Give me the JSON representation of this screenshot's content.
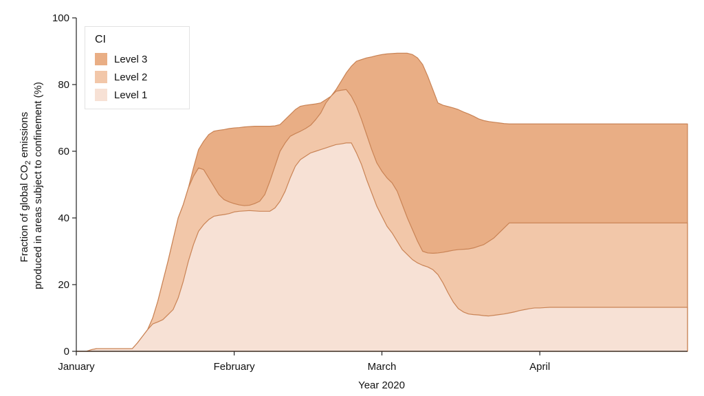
{
  "chart_data": {
    "type": "area",
    "xlabel": "Year 2020",
    "ylabel_line1_pre": "Fraction of global CO",
    "ylabel_sub": "2",
    "ylabel_line1_post": " emissions",
    "ylabel_line2": "produced in areas subject to confinement (%)",
    "ylim": [
      0,
      100
    ],
    "yticks": [
      0,
      20,
      40,
      60,
      80,
      100
    ],
    "xlim": [
      1,
      121
    ],
    "xticks": [
      {
        "day": 1,
        "label": "January"
      },
      {
        "day": 32,
        "label": "February"
      },
      {
        "day": 61,
        "label": "March"
      },
      {
        "day": 92,
        "label": "April"
      }
    ],
    "stacked": true,
    "legend": {
      "title": "CI",
      "position": "top-left"
    },
    "x": [
      1,
      3,
      4,
      5,
      6,
      7,
      8,
      9,
      10,
      11,
      12,
      13,
      14,
      15,
      16,
      17,
      18,
      19,
      20,
      21,
      22,
      23,
      24,
      25,
      26,
      27,
      28,
      29,
      30,
      31,
      32,
      33,
      34,
      35,
      36,
      37,
      38,
      39,
      40,
      41,
      42,
      43,
      44,
      45,
      46,
      47,
      48,
      49,
      50,
      51,
      52,
      53,
      54,
      55,
      56,
      57,
      58,
      59,
      60,
      61,
      62,
      63,
      64,
      65,
      66,
      67,
      68,
      69,
      70,
      71,
      72,
      73,
      74,
      75,
      76,
      77,
      78,
      79,
      80,
      81,
      82,
      83,
      84,
      85,
      86,
      87,
      88,
      89,
      90,
      91,
      92,
      93,
      94,
      95,
      96,
      97,
      98,
      99,
      100,
      101,
      102,
      103,
      104,
      105,
      106,
      107,
      108,
      109,
      110,
      111,
      112,
      113,
      114,
      115,
      116,
      117,
      118,
      119,
      120,
      121
    ],
    "series": [
      {
        "name": "Level 1",
        "color": "#f7e1d5",
        "values": [
          0,
          0,
          0.5,
          0.8,
          0.8,
          0.8,
          0.8,
          0.8,
          0.8,
          0.8,
          0.8,
          2.5,
          4.5,
          6.5,
          8.2,
          8.8,
          9.5,
          11,
          12.5,
          16,
          21,
          27,
          32,
          36,
          38,
          39.5,
          40.5,
          40.8,
          41,
          41.3,
          41.8,
          42,
          42.1,
          42.2,
          42.1,
          42,
          42,
          42,
          43,
          45,
          48,
          52,
          55.5,
          57.5,
          58.5,
          59.5,
          60,
          60.5,
          61,
          61.5,
          62,
          62.2,
          62.5,
          62.5,
          59.5,
          56,
          51.5,
          47.5,
          43.5,
          40.5,
          37.5,
          35.5,
          33,
          30.5,
          29,
          27.5,
          26.5,
          25.8,
          25.3,
          24.5,
          23,
          20.5,
          17.5,
          14.8,
          12.8,
          11.8,
          11.2,
          11,
          10.9,
          10.7,
          10.6,
          10.8,
          11,
          11.2,
          11.5,
          11.8,
          12.2,
          12.5,
          12.8,
          13,
          13,
          13.1,
          13.2,
          13.2,
          13.2,
          13.2,
          13.2,
          13.2,
          13.2,
          13.2,
          13.2,
          13.2,
          13.2,
          13.2,
          13.2,
          13.2,
          13.2,
          13.2,
          13.2,
          13.2,
          13.2,
          13.2,
          13.2,
          13.2,
          13.2,
          13.2,
          13.2,
          13.2,
          13.2,
          13.2
        ]
      },
      {
        "name": "Level 2",
        "color": "#f2c7a9",
        "values": [
          0,
          0,
          0.5,
          0.8,
          0.8,
          0.8,
          0.8,
          0.8,
          0.8,
          0.8,
          0.8,
          2.5,
          4.5,
          6.5,
          10,
          15,
          21,
          27,
          33.5,
          40,
          44,
          49,
          52.5,
          55,
          54.5,
          52,
          49.5,
          47,
          45.5,
          44.8,
          44.3,
          43.9,
          43.7,
          43.8,
          44.3,
          45,
          47,
          51,
          55.5,
          60,
          62.5,
          64.5,
          65.3,
          66,
          66.8,
          67.8,
          69.5,
          71.5,
          74.5,
          76.5,
          78,
          78.3,
          78.5,
          76.5,
          73.5,
          69.5,
          65,
          60.5,
          56.5,
          54,
          52,
          50.5,
          48,
          44,
          40,
          36.5,
          33,
          30,
          29.5,
          29.4,
          29.5,
          29.7,
          30,
          30.3,
          30.5,
          30.6,
          30.7,
          31,
          31.5,
          32,
          33,
          34,
          35.5,
          37,
          38.5,
          38.5,
          38.5,
          38.5,
          38.5,
          38.5,
          38.5,
          38.5,
          38.5,
          38.5,
          38.5,
          38.5,
          38.5,
          38.5,
          38.5,
          38.5,
          38.5,
          38.5,
          38.5,
          38.5,
          38.5,
          38.5,
          38.5,
          38.5,
          38.5,
          38.5,
          38.5,
          38.5,
          38.5,
          38.5,
          38.5,
          38.5,
          38.5,
          38.5,
          38.5,
          38.5
        ]
      },
      {
        "name": "Level 3",
        "color": "#e9ae85",
        "values": [
          0,
          0,
          0.5,
          0.8,
          0.8,
          0.8,
          0.8,
          0.8,
          0.8,
          0.8,
          0.8,
          2.5,
          4.5,
          6.5,
          10,
          15,
          21,
          27,
          33.5,
          40,
          44,
          49,
          55,
          60.5,
          63,
          65,
          66,
          66.3,
          66.5,
          66.8,
          67,
          67.1,
          67.3,
          67.4,
          67.5,
          67.5,
          67.5,
          67.5,
          67.6,
          68,
          69.5,
          71,
          72.5,
          73.5,
          73.8,
          74,
          74.2,
          74.5,
          75.5,
          76.5,
          78.5,
          81,
          83.5,
          85.5,
          87,
          87.5,
          88,
          88.3,
          88.7,
          89,
          89.2,
          89.3,
          89.4,
          89.4,
          89.4,
          89,
          88,
          86,
          82.5,
          78.5,
          74.5,
          73.8,
          73.4,
          73,
          72.5,
          71.8,
          71.2,
          70.5,
          69.7,
          69.2,
          68.9,
          68.7,
          68.5,
          68.3,
          68.2,
          68.2,
          68.2,
          68.2,
          68.2,
          68.2,
          68.2,
          68.2,
          68.2,
          68.2,
          68.2,
          68.2,
          68.2,
          68.2,
          68.2,
          68.2,
          68.2,
          68.2,
          68.2,
          68.2,
          68.2,
          68.2,
          68.2,
          68.2,
          68.2,
          68.2,
          68.2,
          68.2,
          68.2,
          68.2,
          68.2,
          68.2,
          68.2,
          68.2,
          68.2,
          68.2
        ]
      }
    ]
  }
}
